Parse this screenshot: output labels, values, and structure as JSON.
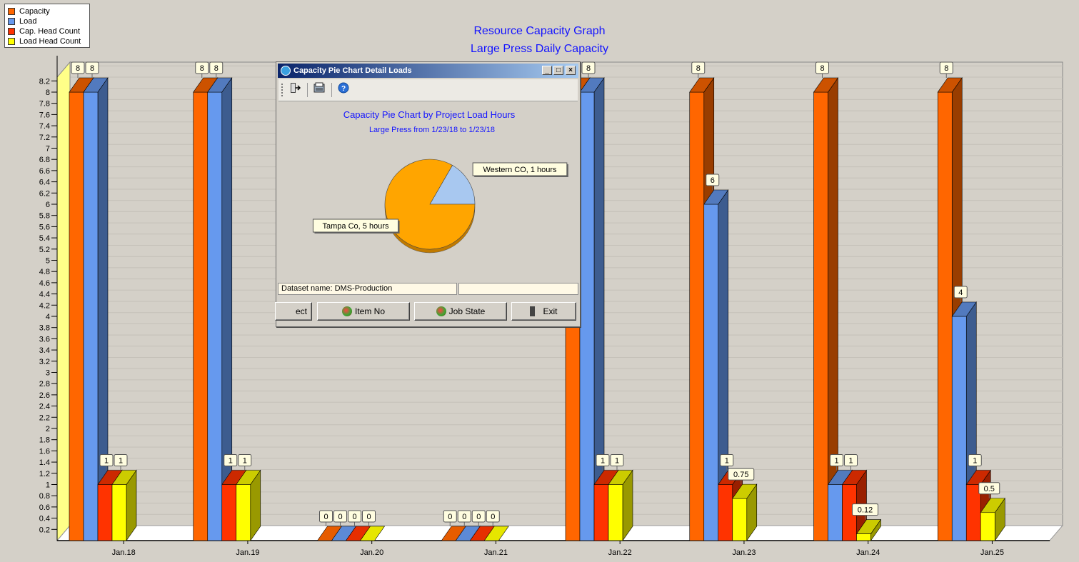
{
  "legend": {
    "items": [
      {
        "label": "Capacity",
        "color": "#ff6600"
      },
      {
        "label": "Load",
        "color": "#6699ee"
      },
      {
        "label": "Cap. Head Count",
        "color": "#ff3300"
      },
      {
        "label": "Load Head Count",
        "color": "#ffff00"
      }
    ]
  },
  "chart": {
    "title": "Resource Capacity Graph",
    "subtitle": "Large Press Daily Capacity"
  },
  "chart_data": [
    {
      "type": "bar",
      "title": "Resource Capacity Graph",
      "subtitle": "Large Press Daily Capacity",
      "categories": [
        "Jan.18",
        "Jan.19",
        "Jan.20",
        "Jan.21",
        "Jan.22",
        "Jan.23",
        "Jan.24",
        "Jan.25"
      ],
      "ylim": [
        0,
        8.2
      ],
      "ytick_step": 0.2,
      "grid": true,
      "legend_position": "top-left",
      "series": [
        {
          "name": "Capacity",
          "color": "#ff6600",
          "values": [
            8,
            8,
            0,
            0,
            8,
            8,
            8,
            8
          ]
        },
        {
          "name": "Load",
          "color": "#6699ee",
          "values": [
            8,
            8,
            0,
            0,
            8,
            6,
            1,
            4
          ]
        },
        {
          "name": "Cap. Head Count",
          "color": "#ff3300",
          "values": [
            1,
            1,
            0,
            0,
            1,
            1,
            1,
            1
          ]
        },
        {
          "name": "Load Head Count",
          "color": "#ffff00",
          "values": [
            1,
            1,
            0,
            0,
            1,
            0.75,
            0.12,
            0.5
          ]
        }
      ]
    },
    {
      "type": "pie",
      "title": "Capacity Pie Chart by Project Load Hours",
      "subtitle": "Large Press from 1/23/18 to 1/23/18",
      "slices": [
        {
          "label": "Tampa Co, 5 hours",
          "value": 5,
          "color": "#ffa500"
        },
        {
          "label": "Western CO, 1 hours",
          "value": 1,
          "color": "#a8c8f0"
        }
      ]
    }
  ],
  "dialog": {
    "title": "Capacity Pie Chart Detail Loads",
    "status_label": "Dataset name:  DMS-Production",
    "status_right": "",
    "buttons": {
      "select": "ect",
      "item_no": "Item No",
      "job_state": "Job State",
      "exit": "Exit"
    }
  }
}
